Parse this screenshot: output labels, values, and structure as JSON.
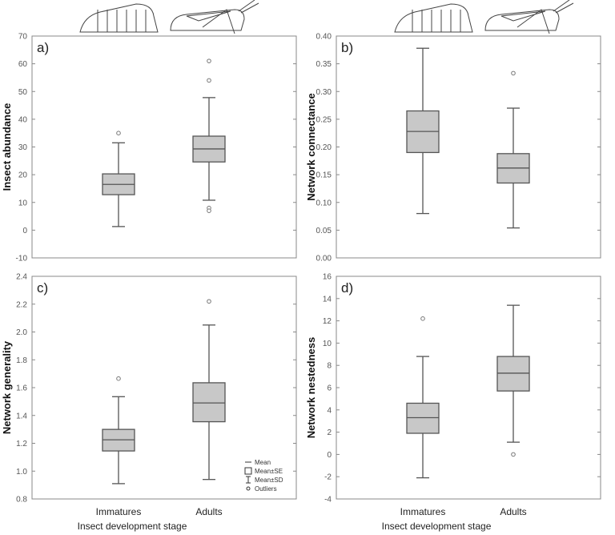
{
  "chart_data": [
    {
      "type": "box",
      "panel_label": "a)",
      "ylabel": "Insect abundance",
      "ylim": [
        -10,
        70
      ],
      "yticks": [
        -10,
        0,
        10,
        20,
        30,
        40,
        50,
        60,
        70
      ],
      "categories": [
        "Immatures",
        "Adults"
      ],
      "stats": [
        {
          "mean": 16.5,
          "se_low": 12.8,
          "se_high": 20.3,
          "sd_low": 1.3,
          "sd_high": 31.5,
          "outliers": [
            35
          ]
        },
        {
          "mean": 29.3,
          "se_low": 24.6,
          "se_high": 33.9,
          "sd_low": 10.8,
          "sd_high": 47.8,
          "outliers": [
            61,
            54,
            8,
            7
          ]
        }
      ]
    },
    {
      "type": "box",
      "panel_label": "b)",
      "ylabel": "Network connectance",
      "ylim": [
        0,
        0.4
      ],
      "yticks": [
        "0.00",
        "0.05",
        "0.10",
        "0.15",
        "0.20",
        "0.25",
        "0.30",
        "0.35",
        "0.40"
      ],
      "categories": [
        "Immatures",
        "Adults"
      ],
      "stats": [
        {
          "mean": 0.228,
          "se_low": 0.19,
          "se_high": 0.265,
          "sd_low": 0.08,
          "sd_high": 0.378,
          "outliers": []
        },
        {
          "mean": 0.162,
          "se_low": 0.135,
          "se_high": 0.188,
          "sd_low": 0.054,
          "sd_high": 0.27,
          "outliers": [
            0.333
          ]
        }
      ]
    },
    {
      "type": "box",
      "panel_label": "c)",
      "ylabel": "Network generality",
      "ylim": [
        0.8,
        2.4
      ],
      "yticks": [
        "0.8",
        "1.0",
        "1.2",
        "1.4",
        "1.6",
        "1.8",
        "2.0",
        "2.2",
        "2.4"
      ],
      "categories": [
        "Immatures",
        "Adults"
      ],
      "xlabel": "Insect development stage",
      "stats": [
        {
          "mean": 1.225,
          "se_low": 1.145,
          "se_high": 1.3,
          "sd_low": 0.91,
          "sd_high": 1.535,
          "outliers": [
            1.665
          ]
        },
        {
          "mean": 1.49,
          "se_low": 1.355,
          "se_high": 1.635,
          "sd_low": 0.94,
          "sd_high": 2.05,
          "outliers": [
            2.22
          ]
        }
      ]
    },
    {
      "type": "box",
      "panel_label": "d)",
      "ylabel": "Network nestedness",
      "ylim": [
        -4,
        16
      ],
      "yticks": [
        -4,
        -2,
        0,
        2,
        4,
        6,
        8,
        10,
        12,
        14,
        16
      ],
      "categories": [
        "Immatures",
        "Adults"
      ],
      "xlabel": "Insect development stage",
      "stats": [
        {
          "mean": 3.3,
          "se_low": 1.9,
          "se_high": 4.6,
          "sd_low": -2.1,
          "sd_high": 8.8,
          "outliers": [
            12.2
          ]
        },
        {
          "mean": 7.3,
          "se_low": 5.7,
          "se_high": 8.8,
          "sd_low": 1.1,
          "sd_high": 13.4,
          "outliers": [
            0
          ]
        }
      ]
    }
  ],
  "legend": [
    "Mean",
    "Mean±SE",
    "Mean±SD",
    "Outliers"
  ],
  "legend_placement": "bottom-right of panel c",
  "colors": {
    "box": "#c8c8c8",
    "line": "#555555"
  }
}
